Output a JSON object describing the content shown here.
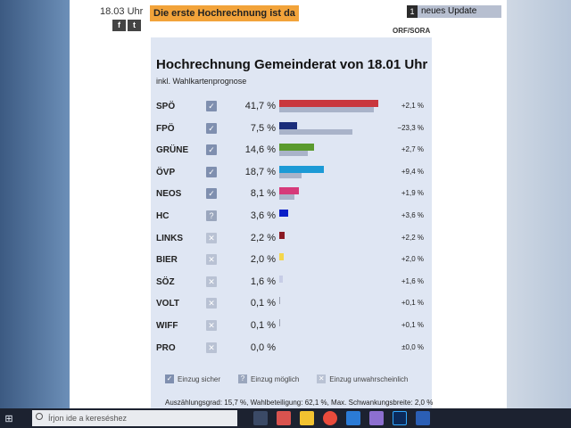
{
  "page": {
    "time": "18.03 Uhr",
    "headline": "Die erste Hochrechnung ist da",
    "update_count": "1",
    "update_label": "neues Update",
    "share": [
      "f",
      "t"
    ],
    "source": "ORF/SORA"
  },
  "chart": {
    "title": "Hochrechnung Gemeinderat von 18.01 Uhr",
    "subtitle": "inkl. Wahlkartenprognose",
    "footer": "Auszählungsgrad: 15,7 %, Wahlbeteiligung: 62,1 %, Max. Schwankungsbreite: 2,0 %",
    "legend": {
      "sicher": "Einzug sicher",
      "moeglich": "Einzug möglich",
      "unwahr": "Einzug unwahrscheinlich"
    }
  },
  "chart_data": {
    "type": "bar",
    "categories": [
      "SPÖ",
      "FPÖ",
      "GRÜNE",
      "ÖVP",
      "NEOS",
      "HC",
      "LINKS",
      "BIER",
      "SÖZ",
      "VOLT",
      "WIFF",
      "PRO"
    ],
    "series": [
      {
        "values": [
          41.7,
          7.5,
          14.6,
          18.7,
          8.1,
          3.6,
          2.2,
          2.0,
          1.6,
          0.1,
          0.1,
          0.0
        ]
      },
      {
        "values": [
          39.6,
          30.8,
          11.9,
          9.3,
          6.2,
          0,
          0,
          0,
          0,
          0,
          0,
          0
        ]
      }
    ],
    "value_labels": [
      "41,7 %",
      "7,5 %",
      "14,6 %",
      "18,7 %",
      "8,1 %",
      "3,6 %",
      "2,2 %",
      "2,0 %",
      "1,6 %",
      "0,1 %",
      "0,1 %",
      "0,0 %"
    ],
    "diff_labels": [
      "+2,1 %",
      "−23,3 %",
      "+2,7 %",
      "+9,4 %",
      "+1,9 %",
      "+3,6 %",
      "+2,2 %",
      "+2,0 %",
      "+1,6 %",
      "+0,1 %",
      "+0,1 %",
      "±0,0 %"
    ],
    "status": [
      "sicher",
      "sicher",
      "sicher",
      "sicher",
      "sicher",
      "moeglich",
      "unwahr",
      "unwahr",
      "unwahr",
      "unwahr",
      "unwahr",
      "unwahr"
    ],
    "colors": [
      "#c9373d",
      "#1a2d7a",
      "#5a9a2e",
      "#1c9ad6",
      "#d63a7a",
      "#0a1fc8",
      "#8a1a24",
      "#f3d64c",
      "#c7cde6",
      "#9aa0b0",
      "#9aa0b0",
      "#9aa0b0"
    ],
    "xlim": [
      0,
      45
    ]
  },
  "taskbar": {
    "search_placeholder": "Írjon ide a kereséshez"
  }
}
